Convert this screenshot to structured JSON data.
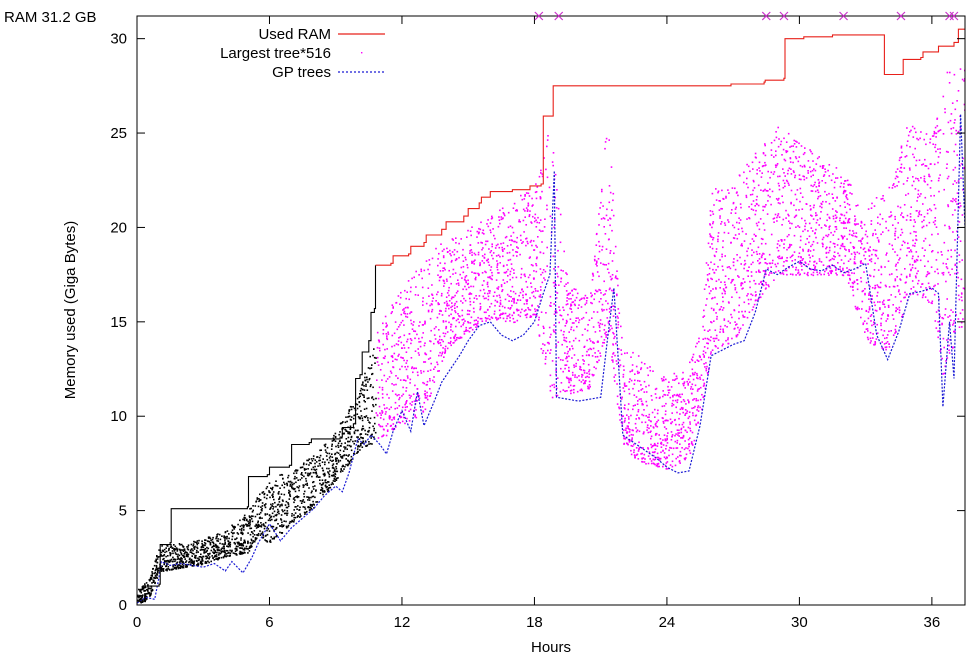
{
  "chart_data": {
    "type": "line",
    "ram_label": "RAM 31.2 GB",
    "xlabel": "Hours",
    "ylabel": "Memory used (Giga Bytes)",
    "xlim": [
      0,
      37.5
    ],
    "ylim": [
      0,
      31.2
    ],
    "xticks": [
      0,
      6,
      12,
      18,
      24,
      30,
      36
    ],
    "yticks": [
      0,
      5,
      10,
      15,
      20,
      25,
      30
    ],
    "legend_position": "top-left",
    "colors": {
      "used_ram": "#e8201a",
      "early_ram": "#000000",
      "largest": "#ff00ff",
      "early_largest": "#000000",
      "gp": "#1a1ad4",
      "marker": "#cc33cc"
    },
    "series": [
      {
        "name": "Used RAM",
        "style": "solid-step",
        "points": [
          [
            0,
            0.2
          ],
          [
            0.35,
            0.6
          ],
          [
            0.5,
            1.0
          ],
          [
            1.0,
            1.1
          ],
          [
            1.05,
            3.2
          ],
          [
            1.5,
            3.3
          ],
          [
            1.55,
            5.1
          ],
          [
            5.0,
            5.2
          ],
          [
            5.05,
            6.8
          ],
          [
            5.9,
            6.9
          ],
          [
            6.0,
            7.3
          ],
          [
            6.9,
            7.4
          ],
          [
            7.0,
            8.5
          ],
          [
            7.8,
            8.6
          ],
          [
            7.9,
            8.8
          ],
          [
            9.2,
            8.9
          ],
          [
            9.3,
            9.4
          ],
          [
            9.8,
            9.6
          ],
          [
            9.9,
            12.0
          ],
          [
            10.1,
            12.2
          ],
          [
            10.2,
            13.4
          ],
          [
            10.5,
            14.0
          ],
          [
            10.6,
            15.5
          ],
          [
            10.75,
            15.7
          ],
          [
            10.8,
            18.0
          ],
          [
            11.5,
            18.1
          ],
          [
            11.6,
            18.5
          ],
          [
            12.3,
            18.6
          ],
          [
            12.4,
            19.0
          ],
          [
            13.0,
            19.2
          ],
          [
            13.1,
            19.6
          ],
          [
            13.8,
            19.9
          ],
          [
            14.0,
            20.3
          ],
          [
            14.8,
            20.6
          ],
          [
            15.0,
            21.0
          ],
          [
            15.5,
            21.3
          ],
          [
            15.6,
            21.6
          ],
          [
            16.0,
            21.9
          ],
          [
            17.0,
            22.0
          ],
          [
            17.8,
            22.2
          ],
          [
            18.3,
            22.3
          ],
          [
            18.4,
            25.9
          ],
          [
            18.8,
            25.9
          ],
          [
            18.85,
            27.5
          ],
          [
            26.9,
            27.6
          ],
          [
            27.0,
            27.6
          ],
          [
            28.4,
            27.7
          ],
          [
            28.45,
            27.8
          ],
          [
            29.3,
            27.9
          ],
          [
            29.35,
            30.0
          ],
          [
            30.2,
            30.1
          ],
          [
            30.3,
            30.1
          ],
          [
            31.5,
            30.2
          ],
          [
            33.8,
            30.2
          ],
          [
            33.85,
            28.1
          ],
          [
            34.6,
            28.1
          ],
          [
            34.7,
            28.9
          ],
          [
            35.5,
            29.0
          ],
          [
            35.6,
            29.3
          ],
          [
            36.2,
            29.3
          ],
          [
            36.3,
            29.6
          ],
          [
            37.0,
            29.8
          ],
          [
            37.2,
            30.5
          ],
          [
            37.5,
            30.5
          ]
        ]
      },
      {
        "name": "Largest tree*516",
        "style": "dots",
        "band": [
          [
            0,
            0.1,
            0.9
          ],
          [
            0.5,
            0.3,
            1.3
          ],
          [
            1.0,
            1.8,
            3.2
          ],
          [
            2.0,
            2.0,
            3.3
          ],
          [
            3.0,
            2.2,
            3.6
          ],
          [
            4.0,
            2.6,
            4.0
          ],
          [
            5.0,
            2.8,
            5.0
          ],
          [
            5.5,
            3.8,
            5.9
          ],
          [
            6.0,
            3.2,
            6.8
          ],
          [
            7.0,
            4.4,
            7.1
          ],
          [
            8.0,
            5.2,
            8.0
          ],
          [
            9.0,
            6.6,
            9.3
          ],
          [
            10.0,
            8.2,
            11.3
          ],
          [
            11.0,
            8.8,
            15.0
          ],
          [
            12.0,
            9.6,
            16.8
          ],
          [
            13.0,
            10.2,
            18.5
          ],
          [
            14.0,
            13.6,
            19.4
          ],
          [
            15.0,
            14.5,
            20.0
          ],
          [
            16.0,
            15.2,
            20.6
          ],
          [
            17.0,
            15.0,
            21.5
          ],
          [
            18.0,
            15.3,
            22.2
          ],
          [
            18.7,
            11.0,
            25.8
          ],
          [
            19.5,
            11.2,
            17.0
          ],
          [
            20.5,
            11.5,
            16.5
          ],
          [
            21.3,
            14.5,
            26.0
          ],
          [
            22.0,
            8.2,
            14.0
          ],
          [
            23.0,
            7.5,
            13.0
          ],
          [
            24.0,
            7.2,
            12.0
          ],
          [
            25.0,
            7.8,
            13.0
          ],
          [
            25.5,
            10.0,
            14.5
          ],
          [
            26.0,
            13.5,
            22.0
          ],
          [
            27.0,
            14.0,
            22.5
          ],
          [
            28.0,
            16.0,
            24.0
          ],
          [
            29.0,
            17.5,
            25.5
          ],
          [
            30.0,
            17.5,
            24.5
          ],
          [
            31.0,
            17.5,
            24.0
          ],
          [
            32.0,
            17.5,
            23.0
          ],
          [
            33.0,
            14.0,
            21.0
          ],
          [
            34.0,
            13.5,
            22.5
          ],
          [
            35.0,
            16.5,
            26.0
          ],
          [
            36.0,
            16.0,
            25.0
          ],
          [
            36.5,
            12.0,
            28.0
          ],
          [
            37.0,
            14.0,
            29.5
          ],
          [
            37.5,
            15.0,
            29.0
          ]
        ]
      },
      {
        "name": "GP trees",
        "style": "dashed",
        "points": [
          [
            0,
            0.1
          ],
          [
            0.4,
            0.4
          ],
          [
            0.8,
            0.3
          ],
          [
            1.0,
            1.5
          ],
          [
            1.1,
            2.3
          ],
          [
            1.5,
            2.1
          ],
          [
            2.0,
            2.2
          ],
          [
            2.5,
            2.1
          ],
          [
            3.0,
            2.0
          ],
          [
            3.5,
            2.2
          ],
          [
            4.0,
            1.8
          ],
          [
            4.3,
            2.3
          ],
          [
            4.8,
            1.7
          ],
          [
            5.2,
            2.5
          ],
          [
            5.5,
            3.3
          ],
          [
            6.0,
            4.3
          ],
          [
            6.5,
            3.4
          ],
          [
            7.0,
            4.1
          ],
          [
            7.5,
            4.6
          ],
          [
            8.0,
            5.1
          ],
          [
            8.5,
            5.8
          ],
          [
            9.0,
            6.3
          ],
          [
            9.3,
            6.0
          ],
          [
            9.6,
            7.0
          ],
          [
            10.0,
            8.8
          ],
          [
            10.3,
            8.5
          ],
          [
            10.6,
            9.0
          ],
          [
            11.0,
            8.5
          ],
          [
            11.3,
            8.0
          ],
          [
            11.6,
            9.2
          ],
          [
            12.0,
            10.3
          ],
          [
            12.4,
            9.2
          ],
          [
            12.7,
            11.3
          ],
          [
            13.0,
            9.5
          ],
          [
            13.5,
            10.9
          ],
          [
            13.8,
            11.8
          ],
          [
            14.2,
            12.5
          ],
          [
            14.6,
            13.2
          ],
          [
            15.0,
            14.0
          ],
          [
            15.5,
            14.8
          ],
          [
            16.0,
            15.0
          ],
          [
            16.5,
            14.3
          ],
          [
            17.0,
            14.0
          ],
          [
            17.5,
            14.3
          ],
          [
            18.0,
            15.0
          ],
          [
            18.4,
            16.5
          ],
          [
            18.7,
            17.5
          ],
          [
            18.9,
            23.0
          ],
          [
            19.0,
            11.0
          ],
          [
            19.5,
            10.9
          ],
          [
            20.0,
            10.8
          ],
          [
            20.5,
            10.9
          ],
          [
            21.0,
            11.0
          ],
          [
            21.3,
            14.0
          ],
          [
            21.6,
            16.8
          ],
          [
            22.0,
            9.0
          ],
          [
            22.5,
            8.6
          ],
          [
            23.0,
            8.2
          ],
          [
            23.5,
            7.8
          ],
          [
            24.0,
            7.3
          ],
          [
            24.5,
            7.0
          ],
          [
            25.0,
            7.1
          ],
          [
            25.5,
            9.5
          ],
          [
            26.0,
            13.2
          ],
          [
            26.5,
            13.5
          ],
          [
            27.0,
            13.8
          ],
          [
            27.5,
            14.0
          ],
          [
            28.0,
            15.5
          ],
          [
            28.5,
            17.8
          ],
          [
            29.0,
            17.5
          ],
          [
            29.5,
            17.9
          ],
          [
            30.0,
            18.2
          ],
          [
            30.5,
            17.8
          ],
          [
            31.0,
            17.7
          ],
          [
            31.5,
            18.0
          ],
          [
            32.0,
            17.6
          ],
          [
            32.5,
            17.8
          ],
          [
            33.0,
            18.1
          ],
          [
            33.5,
            14.3
          ],
          [
            34.0,
            13.0
          ],
          [
            34.5,
            14.5
          ],
          [
            35.0,
            16.5
          ],
          [
            35.5,
            16.6
          ],
          [
            36.0,
            16.8
          ],
          [
            36.3,
            16.5
          ],
          [
            36.5,
            10.5
          ],
          [
            36.8,
            15.0
          ],
          [
            37.0,
            12.0
          ],
          [
            37.3,
            26.0
          ],
          [
            37.5,
            20.0
          ]
        ]
      }
    ],
    "marker_x": [
      18.2,
      19.1,
      28.5,
      29.3,
      32.0,
      34.6,
      36.8,
      37.0
    ]
  }
}
